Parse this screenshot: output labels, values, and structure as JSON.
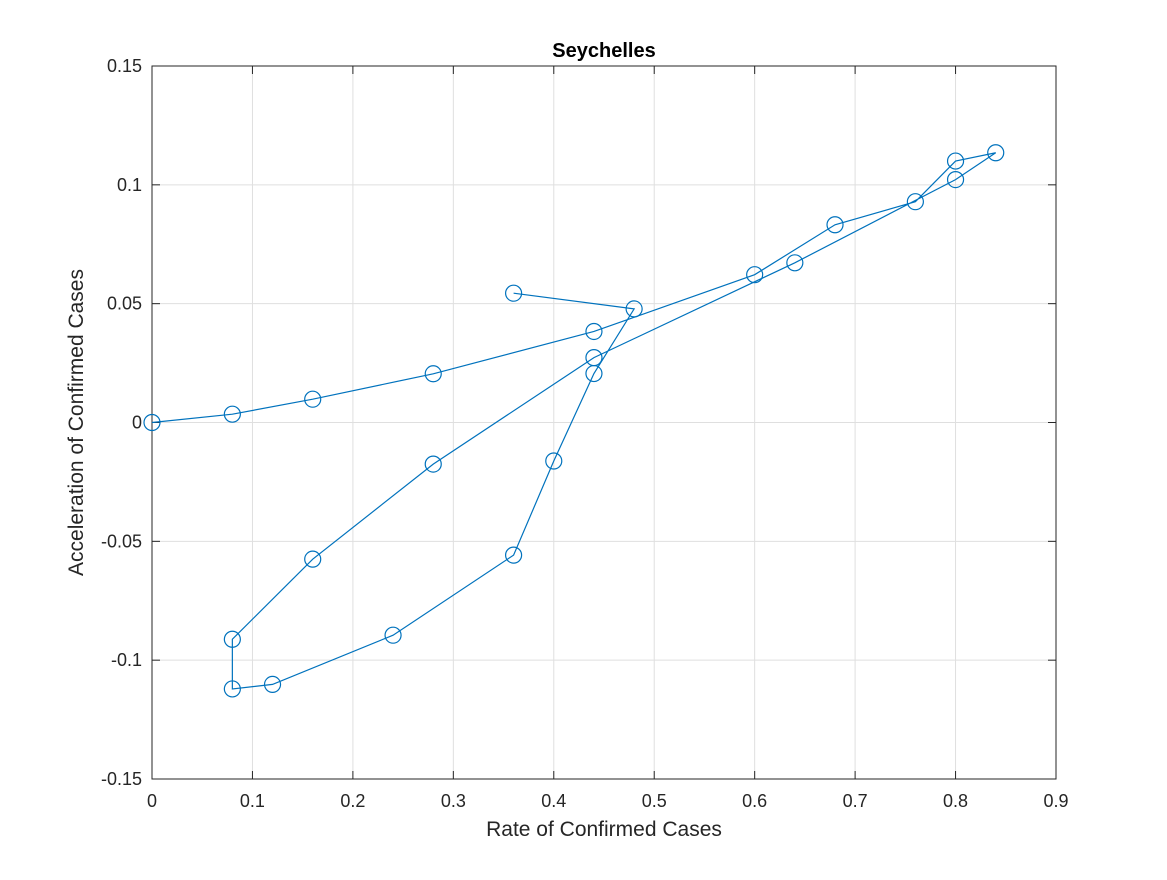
{
  "chart_data": {
    "type": "line",
    "title": "Seychelles",
    "xlabel": "Rate of Confirmed Cases",
    "ylabel": "Acceleration of Confirmed Cases",
    "xlim": [
      0,
      0.9
    ],
    "ylim": [
      -0.15,
      0.15
    ],
    "xticks": [
      0,
      0.1,
      0.2,
      0.3,
      0.4,
      0.5,
      0.6,
      0.7,
      0.8,
      0.9
    ],
    "xtick_labels": [
      "0",
      "0.1",
      "0.2",
      "0.3",
      "0.4",
      "0.5",
      "0.6",
      "0.7",
      "0.8",
      "0.9"
    ],
    "yticks": [
      -0.15,
      -0.1,
      -0.05,
      0,
      0.05,
      0.1,
      0.15
    ],
    "ytick_labels": [
      "-0.15",
      "-0.1",
      "-0.05",
      "0",
      "0.05",
      "0.1",
      "0.15"
    ],
    "grid": true,
    "marker": "circle-open",
    "color": "#0072BD",
    "series": [
      {
        "x": [
          0,
          0.08,
          0.16,
          0.28,
          0.44,
          0.6,
          0.68,
          0.76,
          0.8,
          0.84,
          0.8,
          0.64,
          0.44,
          0.28,
          0.16,
          0.08,
          0.08,
          0.12,
          0.24,
          0.36,
          0.4,
          0.44,
          0.48,
          0.36
        ],
        "y": [
          0,
          0.0035,
          0.0098,
          0.0205,
          0.0383,
          0.0622,
          0.0832,
          0.0929,
          0.11,
          0.1135,
          0.1022,
          0.0672,
          0.0273,
          -0.0175,
          -0.0575,
          -0.0912,
          -0.1121,
          -0.1102,
          -0.0895,
          -0.0558,
          -0.0162,
          0.0206,
          0.0478,
          0.0544
        ]
      }
    ]
  }
}
